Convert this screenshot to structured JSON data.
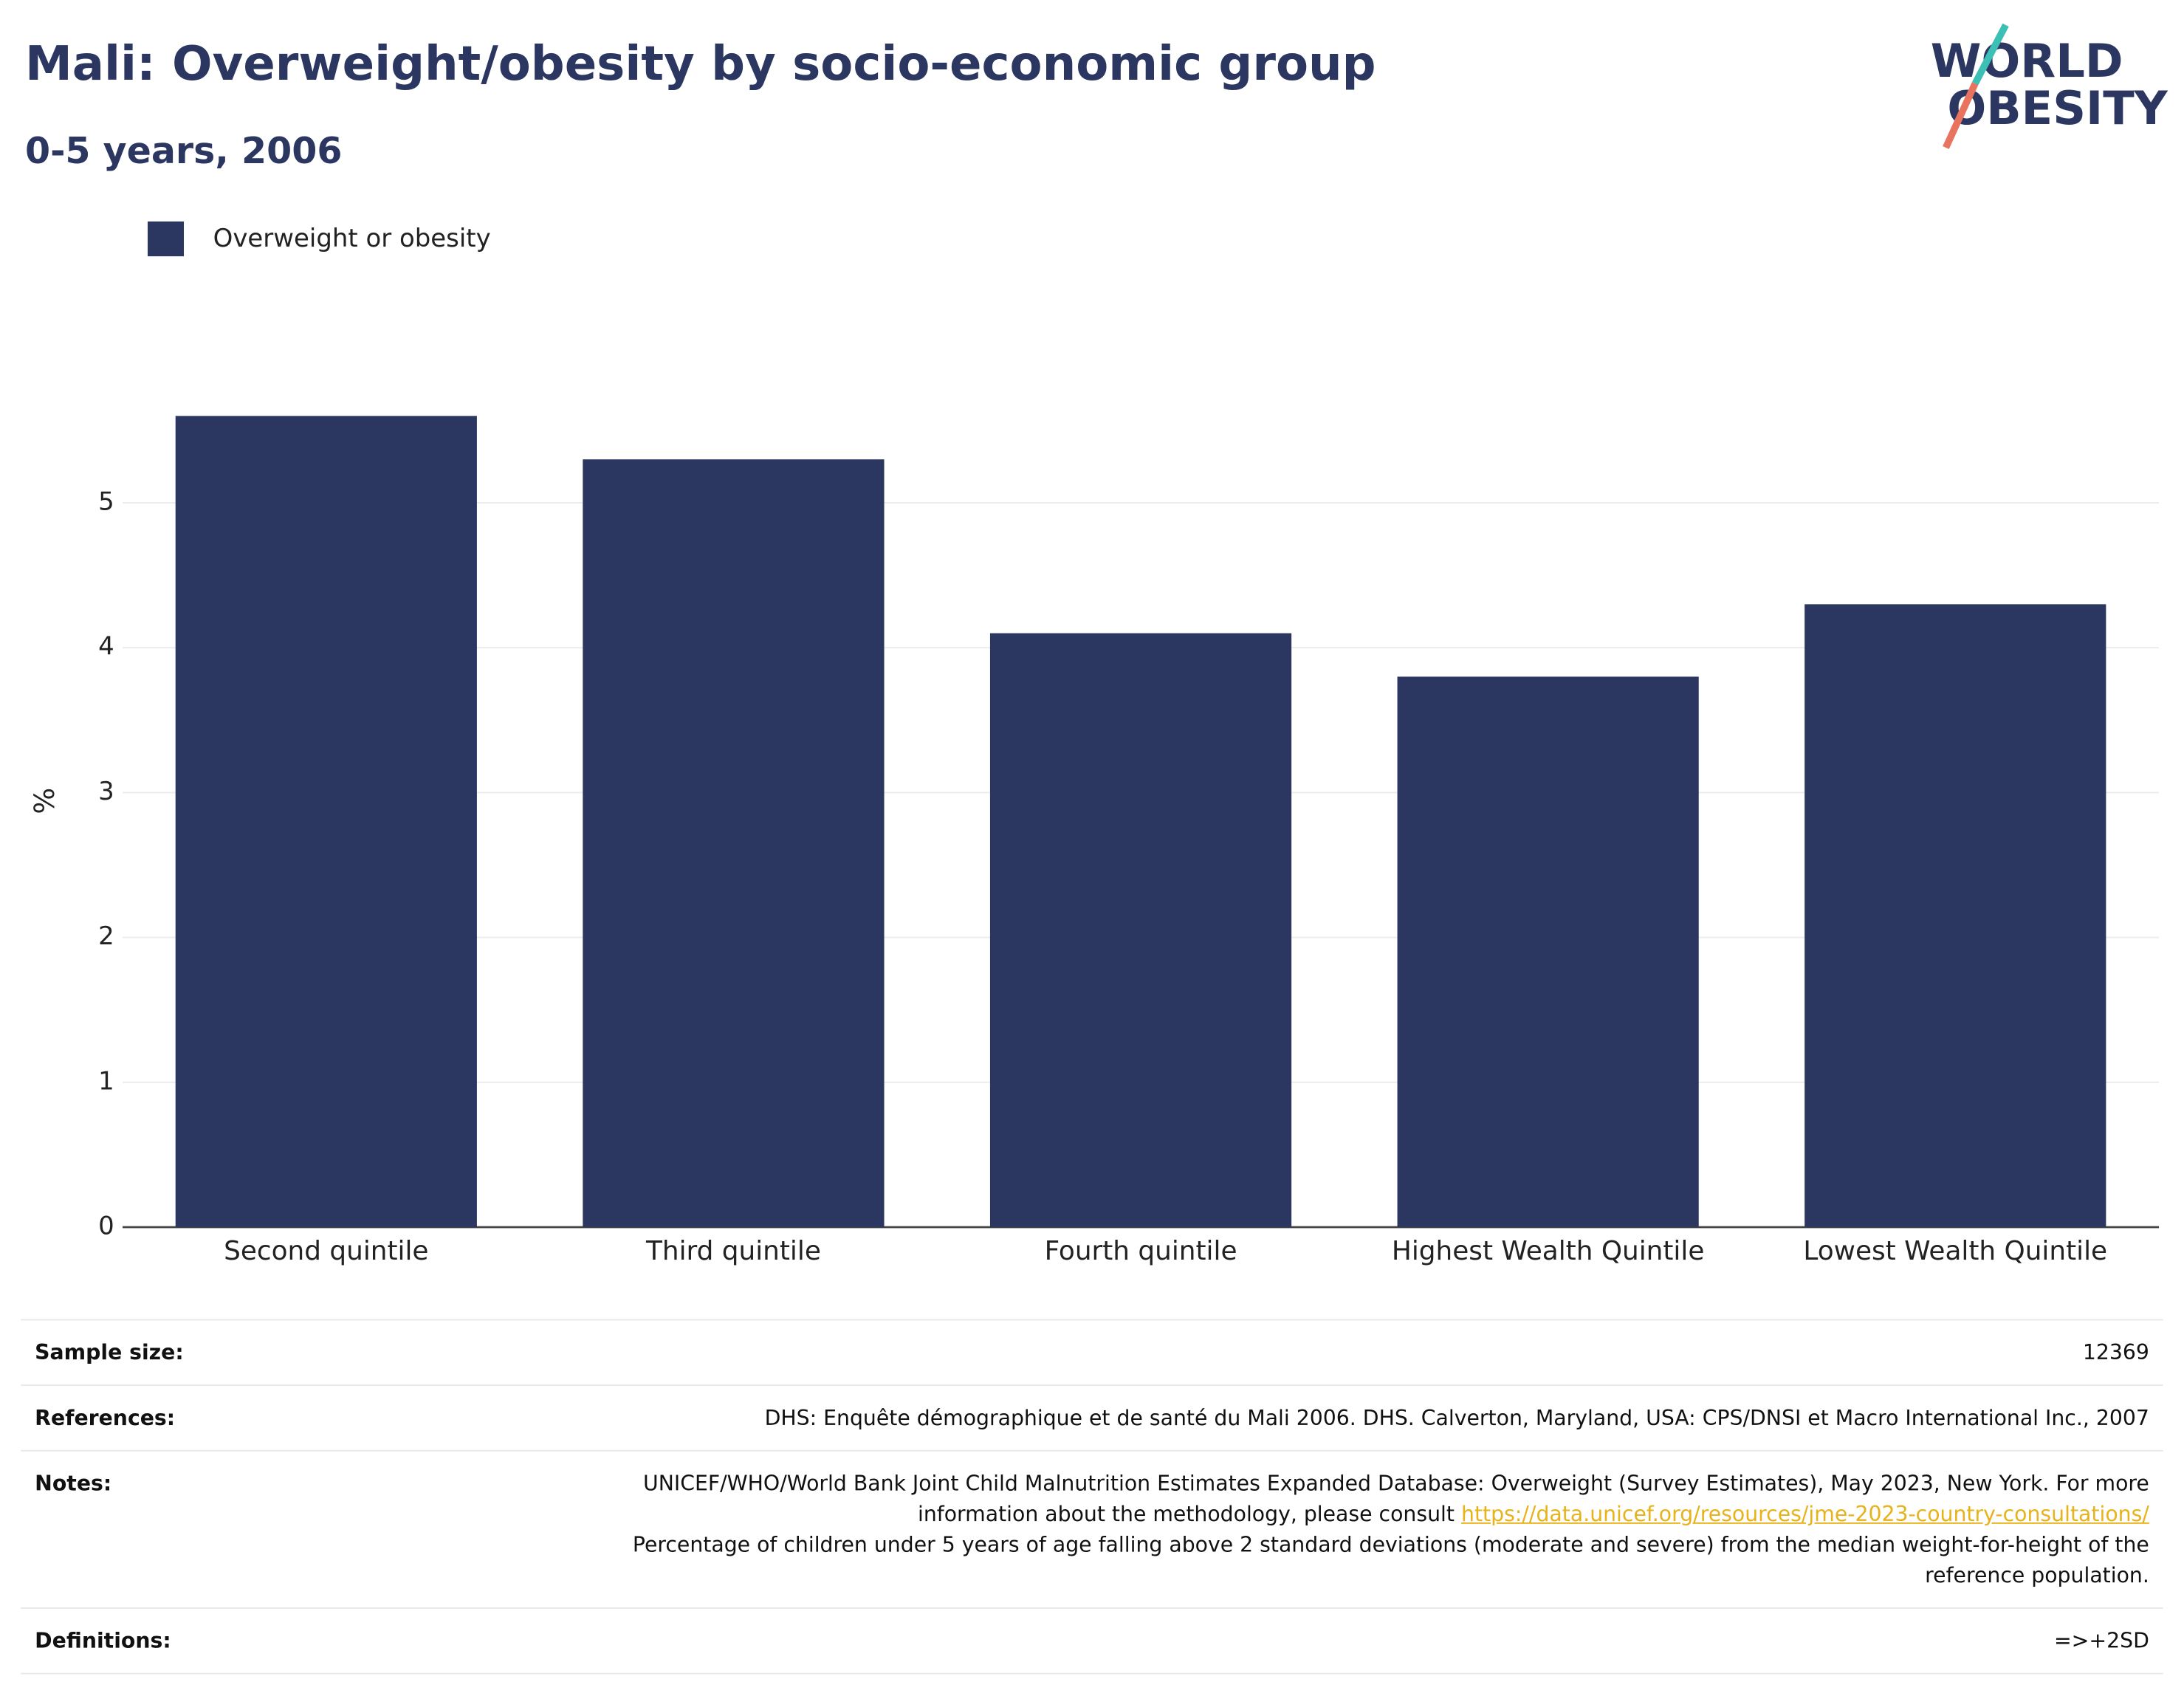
{
  "chart_data": {
    "type": "bar",
    "title": "Mali: Overweight/obesity by socio-economic group",
    "subtitle": "0-5 years, 2006",
    "ylabel": "%",
    "categories": [
      "Second quintile",
      "Third quintile",
      "Fourth quintile",
      "Highest Wealth Quintile",
      "Lowest Wealth Quintile"
    ],
    "series": [
      {
        "name": "Overweight or obesity",
        "color": "#2b3661",
        "values": [
          5.6,
          5.3,
          4.1,
          3.8,
          4.3
        ]
      }
    ],
    "ylim": [
      0,
      5.9
    ],
    "yticks": [
      0,
      1,
      2,
      3,
      4,
      5
    ],
    "grid": true,
    "legend": "top-left"
  },
  "logo": {
    "line1": "WORLD",
    "line2": "OBESITY"
  },
  "footer": {
    "sample_size": {
      "label": "Sample size:",
      "value": "12369"
    },
    "references": {
      "label": "References:",
      "value": "DHS: Enquête démographique et de santé du Mali 2006. DHS. Calverton, Maryland, USA: CPS/DNSI et Macro International Inc., 2007"
    },
    "notes": {
      "label": "Notes:",
      "text1": "UNICEF/WHO/World Bank Joint Child Malnutrition Estimates Expanded Database: Overweight (Survey Estimates), May 2023, New York. For more information about the methodology, please consult",
      "link": "https://data.unicef.org/resources/jme-2023-country-consultations/",
      "text2": "Percentage of children under 5 years of age falling above 2 standard deviations (moderate and severe) from the median weight-for-height of the reference population."
    },
    "definitions": {
      "label": "Definitions:",
      "value": "=>+2SD"
    }
  }
}
